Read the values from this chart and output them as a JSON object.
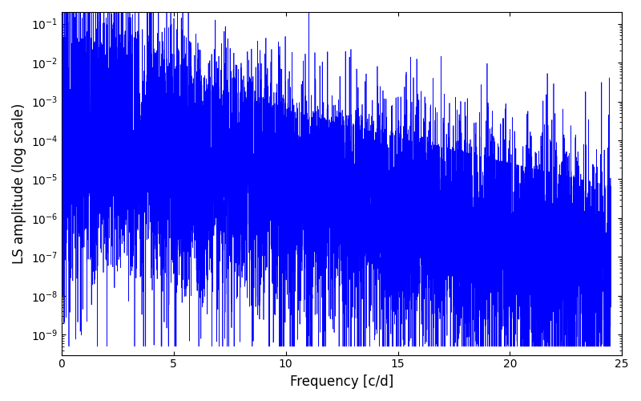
{
  "title": "",
  "xlabel": "Frequency [c/d]",
  "ylabel": "LS amplitude (log scale)",
  "xlim": [
    0,
    25
  ],
  "ylim": [
    3e-10,
    0.2
  ],
  "line_color": "blue",
  "line_width": 0.5,
  "figsize": [
    8.0,
    5.0
  ],
  "dpi": 100,
  "seed": 12345,
  "n_points": 8000,
  "freq_max": 24.5,
  "background_color": "#ffffff"
}
